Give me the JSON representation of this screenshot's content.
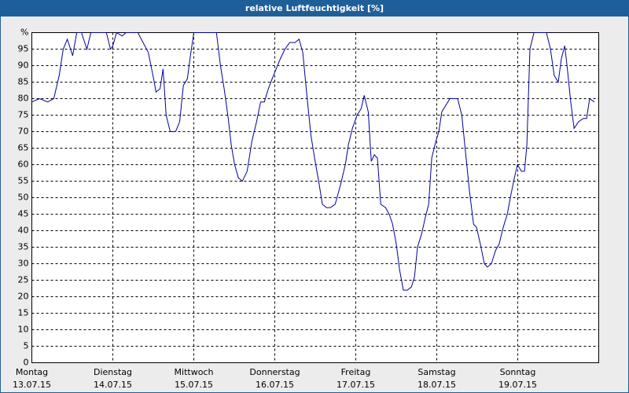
{
  "chart_data": {
    "type": "line",
    "title": "relative Luftfeuchtigkeit [%]",
    "x": [
      0,
      2.3,
      4.7,
      6.5,
      8.1,
      9.3,
      10.5,
      12.1,
      13.3,
      14.7,
      16.3,
      17.5,
      19.8,
      22.1,
      23.3,
      24,
      25.1,
      26.8,
      27.9,
      31.4,
      34.5,
      36.1,
      36.8,
      38,
      38.9,
      39.8,
      41,
      42.6,
      43.8,
      44.9,
      46.1,
      47,
      48,
      54.7,
      55.9,
      57,
      58.2,
      59.1,
      60.1,
      61.2,
      62.4,
      63.8,
      65.2,
      66.6,
      67.8,
      68.9,
      70.1,
      71.2,
      72.4,
      73.6,
      75,
      76.4,
      78,
      79.2,
      80.3,
      81.5,
      82.7,
      83.8,
      85,
      86.1,
      87.3,
      88.5,
      89.9,
      91.5,
      92.9,
      93.8,
      95,
      96.4,
      97.6,
      98.5,
      99.7,
      100.6,
      101.5,
      102.4,
      103.4,
      104.8,
      105.9,
      106.9,
      108,
      109,
      110.1,
      111.3,
      112.5,
      113.4,
      114.3,
      115.5,
      116.6,
      117.6,
      118.5,
      119.7,
      120.6,
      121.5,
      122.7,
      123.9,
      125,
      126.2,
      127.4,
      128.5,
      129.7,
      130.9,
      131.8,
      132.9,
      134.1,
      135,
      136.2,
      137.4,
      138.5,
      139.7,
      140.9,
      142,
      143,
      143.9,
      145.1,
      146,
      146.7,
      147.6,
      148.8,
      152.5,
      153.7,
      154.8,
      156,
      156.9,
      157.9,
      158.6,
      159.7,
      160.7,
      162,
      163.4,
      164.4,
      165.3,
      166.7
    ],
    "series": [
      {
        "name": "relative Luftfeuchtigkeit",
        "color": "#0000a0",
        "values": [
          79,
          80,
          79,
          80,
          87,
          95,
          98,
          93,
          100,
          100,
          95,
          100,
          100,
          100,
          95,
          96,
          100,
          99,
          100,
          100,
          94,
          86,
          82,
          83,
          89,
          75,
          70,
          70,
          73,
          84,
          86,
          93,
          100,
          100,
          90,
          83,
          74,
          66,
          60,
          56,
          55,
          58,
          67,
          73,
          79,
          79,
          83,
          86,
          89,
          92,
          95,
          97,
          97,
          98,
          94,
          81,
          69,
          62,
          55,
          48,
          47,
          47,
          48,
          54,
          60,
          66,
          71,
          75,
          77,
          81,
          76,
          61,
          63,
          62,
          48,
          47,
          45,
          42,
          36,
          28,
          22,
          22,
          23,
          26,
          35,
          39,
          44,
          48,
          62,
          67,
          70,
          76,
          78,
          80,
          80,
          80,
          75,
          64,
          52,
          42,
          41,
          36,
          30,
          29,
          30,
          34,
          36,
          41,
          45,
          51,
          56,
          60,
          58,
          58,
          66,
          95,
          100,
          100,
          95,
          87,
          85,
          92,
          96,
          90,
          79,
          71,
          73,
          74,
          74,
          80,
          79
        ]
      }
    ],
    "xlim": [
      0,
      168
    ],
    "xticks": [
      {
        "value": 0,
        "label": "Montag",
        "date": "13.07.15"
      },
      {
        "value": 24,
        "label": "Dienstag",
        "date": "14.07.15"
      },
      {
        "value": 48,
        "label": "Mittwoch",
        "date": "15.07.15"
      },
      {
        "value": 72,
        "label": "Donnerstag",
        "date": "16.07.15"
      },
      {
        "value": 96,
        "label": "Freitag",
        "date": "17.07.15"
      },
      {
        "value": 120,
        "label": "Samstag",
        "date": "18.07.15"
      },
      {
        "value": 144,
        "label": "Sonntag",
        "date": "19.07.15"
      }
    ],
    "ylim": [
      0,
      100
    ],
    "yticks": [
      0,
      5,
      10,
      15,
      20,
      25,
      30,
      35,
      40,
      45,
      50,
      55,
      60,
      65,
      70,
      75,
      80,
      85,
      90,
      95,
      {
        "value": 100,
        "label": "%"
      }
    ],
    "grid": true
  }
}
